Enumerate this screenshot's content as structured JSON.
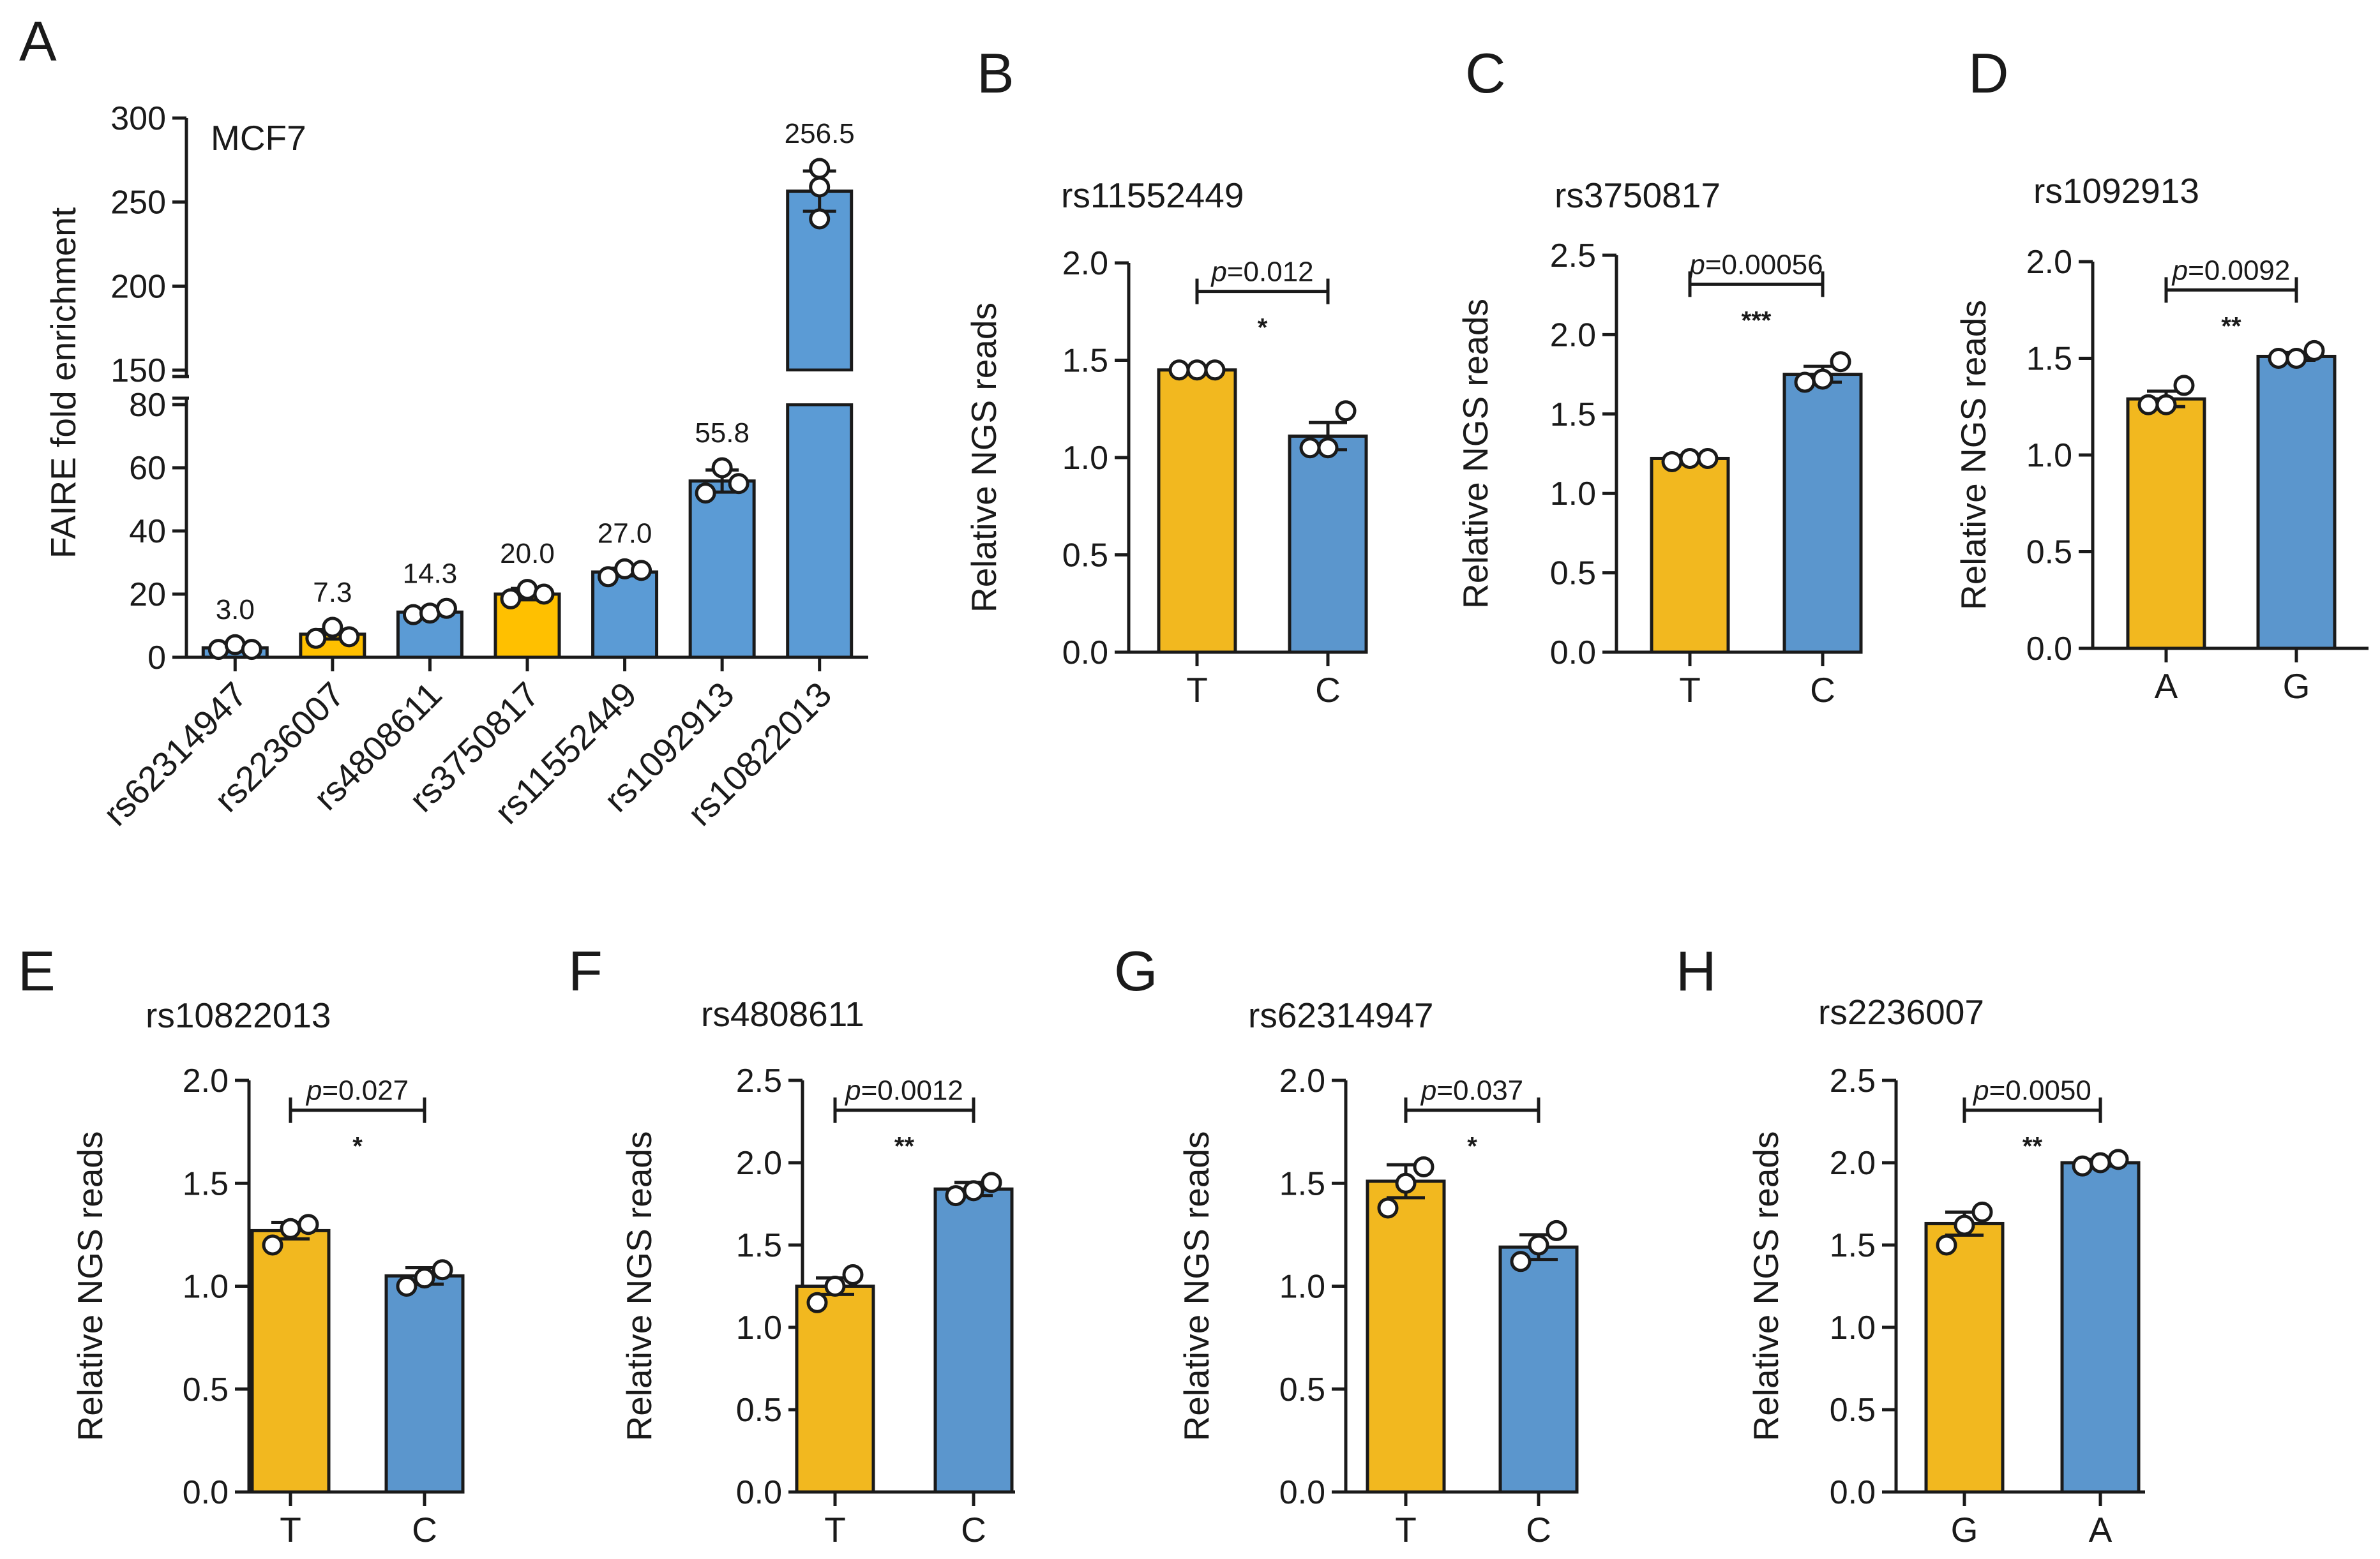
{
  "colors": {
    "yellow": "#F2B81F",
    "blue": "#5B96CD",
    "yellowA": "#FFC000",
    "blueA": "#5B9BD5"
  },
  "chart_data": [
    {
      "panel": "A",
      "type": "bar",
      "title": "MCF7",
      "ylabel": "FAIRE fold enrichment",
      "ylim_lower": [
        0,
        80
      ],
      "ylim_upper": [
        150,
        300
      ],
      "yticks_lower": [
        "0",
        "20",
        "40",
        "60",
        "80"
      ],
      "yticks_upper": [
        "150",
        "200",
        "250",
        "300"
      ],
      "categories": [
        "rs62314947",
        "rs2236007",
        "rs4808611",
        "rs3750817",
        "rs11552449",
        "rs1092913",
        "rs10822013"
      ],
      "values": [
        3.0,
        7.3,
        14.3,
        20.0,
        27.0,
        55.8,
        256.5
      ],
      "value_labels": [
        "3.0",
        "7.3",
        "14.3",
        "20.0",
        "27.0",
        "55.8",
        "256.5"
      ],
      "bar_colors": [
        "blue",
        "yellow",
        "blue",
        "yellow",
        "blue",
        "blue",
        "blue"
      ],
      "sem": [
        0.8,
        1.5,
        1.0,
        1.8,
        1.2,
        3.5,
        12
      ],
      "points": [
        [
          2.5,
          4.0,
          2.5
        ],
        [
          6.0,
          9.5,
          6.5
        ],
        [
          13.5,
          14.0,
          15.5
        ],
        [
          18.5,
          21.5,
          20.0
        ],
        [
          25.5,
          28.0,
          27.5
        ],
        [
          52.0,
          60.0,
          55.0
        ],
        [
          240,
          270,
          259
        ]
      ]
    },
    {
      "panel": "B",
      "type": "bar",
      "title": "rs11552449",
      "ylabel": "Relative NGS reads",
      "ylim": [
        0,
        2.0
      ],
      "yticks": [
        "0.0",
        "0.5",
        "1.0",
        "1.5",
        "2.0"
      ],
      "categories": [
        "T",
        "C"
      ],
      "values": [
        1.45,
        1.11
      ],
      "sem": [
        0.01,
        0.07
      ],
      "points": [
        [
          1.45,
          1.45,
          1.45
        ],
        [
          1.05,
          1.05,
          1.24
        ]
      ],
      "bar_colors": [
        "yellow",
        "blue"
      ],
      "p_label": "p",
      "p_value": "=0.012",
      "stars": "*"
    },
    {
      "panel": "C",
      "type": "bar",
      "title": "rs3750817",
      "ylabel": "Relative NGS reads",
      "ylim": [
        0,
        2.5
      ],
      "yticks": [
        "0.0",
        "0.5",
        "1.0",
        "1.5",
        "2.0",
        "2.5"
      ],
      "categories": [
        "T",
        "C"
      ],
      "values": [
        1.22,
        1.75
      ],
      "sem": [
        0.02,
        0.05
      ],
      "points": [
        [
          1.2,
          1.22,
          1.22
        ],
        [
          1.7,
          1.72,
          1.83
        ]
      ],
      "bar_colors": [
        "yellow",
        "blue"
      ],
      "p_label": "p",
      "p_value": "=0.00056",
      "stars": "***"
    },
    {
      "panel": "D",
      "type": "bar",
      "title": "rs1092913",
      "ylabel": "Relative NGS reads",
      "ylim": [
        0,
        2.0
      ],
      "yticks": [
        "0.0",
        "0.5",
        "1.0",
        "1.5",
        "2.0"
      ],
      "categories": [
        "A",
        "G"
      ],
      "values": [
        1.29,
        1.51
      ],
      "sem": [
        0.04,
        0.02
      ],
      "points": [
        [
          1.26,
          1.26,
          1.36
        ],
        [
          1.5,
          1.5,
          1.54
        ]
      ],
      "bar_colors": [
        "yellow",
        "blue"
      ],
      "p_label": "p",
      "p_value": "=0.0092",
      "stars": "**"
    },
    {
      "panel": "E",
      "type": "bar",
      "title": "rs10822013",
      "ylabel": "Relative NGS reads",
      "ylim": [
        0,
        2.0
      ],
      "yticks": [
        "0.0",
        "0.5",
        "1.0",
        "1.5",
        "2.0"
      ],
      "categories": [
        "T",
        "C"
      ],
      "values": [
        1.27,
        1.05
      ],
      "sem": [
        0.04,
        0.04
      ],
      "points": [
        [
          1.2,
          1.28,
          1.3
        ],
        [
          1.0,
          1.04,
          1.08
        ]
      ],
      "bar_colors": [
        "yellow",
        "blue"
      ],
      "p_label": "p",
      "p_value": "=0.027",
      "stars": "*"
    },
    {
      "panel": "F",
      "type": "bar",
      "title": "rs4808611",
      "ylabel": "Relative NGS reads",
      "ylim": [
        0,
        2.5
      ],
      "yticks": [
        "0.0",
        "0.5",
        "1.0",
        "1.5",
        "2.0",
        "2.5"
      ],
      "categories": [
        "T",
        "C"
      ],
      "values": [
        1.25,
        1.84
      ],
      "sem": [
        0.05,
        0.04
      ],
      "points": [
        [
          1.15,
          1.25,
          1.32
        ],
        [
          1.8,
          1.83,
          1.88
        ]
      ],
      "bar_colors": [
        "yellow",
        "blue"
      ],
      "p_label": "p",
      "p_value": "=0.0012",
      "stars": "**"
    },
    {
      "panel": "G",
      "type": "bar",
      "title": "rs62314947",
      "ylabel": "Relative NGS reads",
      "ylim": [
        0,
        2.0
      ],
      "yticks": [
        "0.0",
        "0.5",
        "1.0",
        "1.5",
        "2.0"
      ],
      "categories": [
        "T",
        "C"
      ],
      "values": [
        1.51,
        1.19
      ],
      "sem": [
        0.08,
        0.06
      ],
      "points": [
        [
          1.38,
          1.5,
          1.58
        ],
        [
          1.12,
          1.2,
          1.27
        ]
      ],
      "bar_colors": [
        "yellow",
        "blue"
      ],
      "p_label": "p",
      "p_value": "=0.037",
      "stars": "*"
    },
    {
      "panel": "H",
      "type": "bar",
      "title": "rs2236007",
      "ylabel": "Relative NGS reads",
      "ylim": [
        0,
        2.5
      ],
      "yticks": [
        "0.0",
        "0.5",
        "1.0",
        "1.5",
        "2.0",
        "2.5"
      ],
      "categories": [
        "G",
        "A"
      ],
      "values": [
        1.63,
        2.0
      ],
      "sem": [
        0.07,
        0.02
      ],
      "points": [
        [
          1.5,
          1.62,
          1.7
        ],
        [
          1.98,
          2.0,
          2.02
        ]
      ],
      "bar_colors": [
        "yellow",
        "blue"
      ],
      "p_label": "p",
      "p_value": "=0.0050",
      "stars": "**"
    }
  ]
}
